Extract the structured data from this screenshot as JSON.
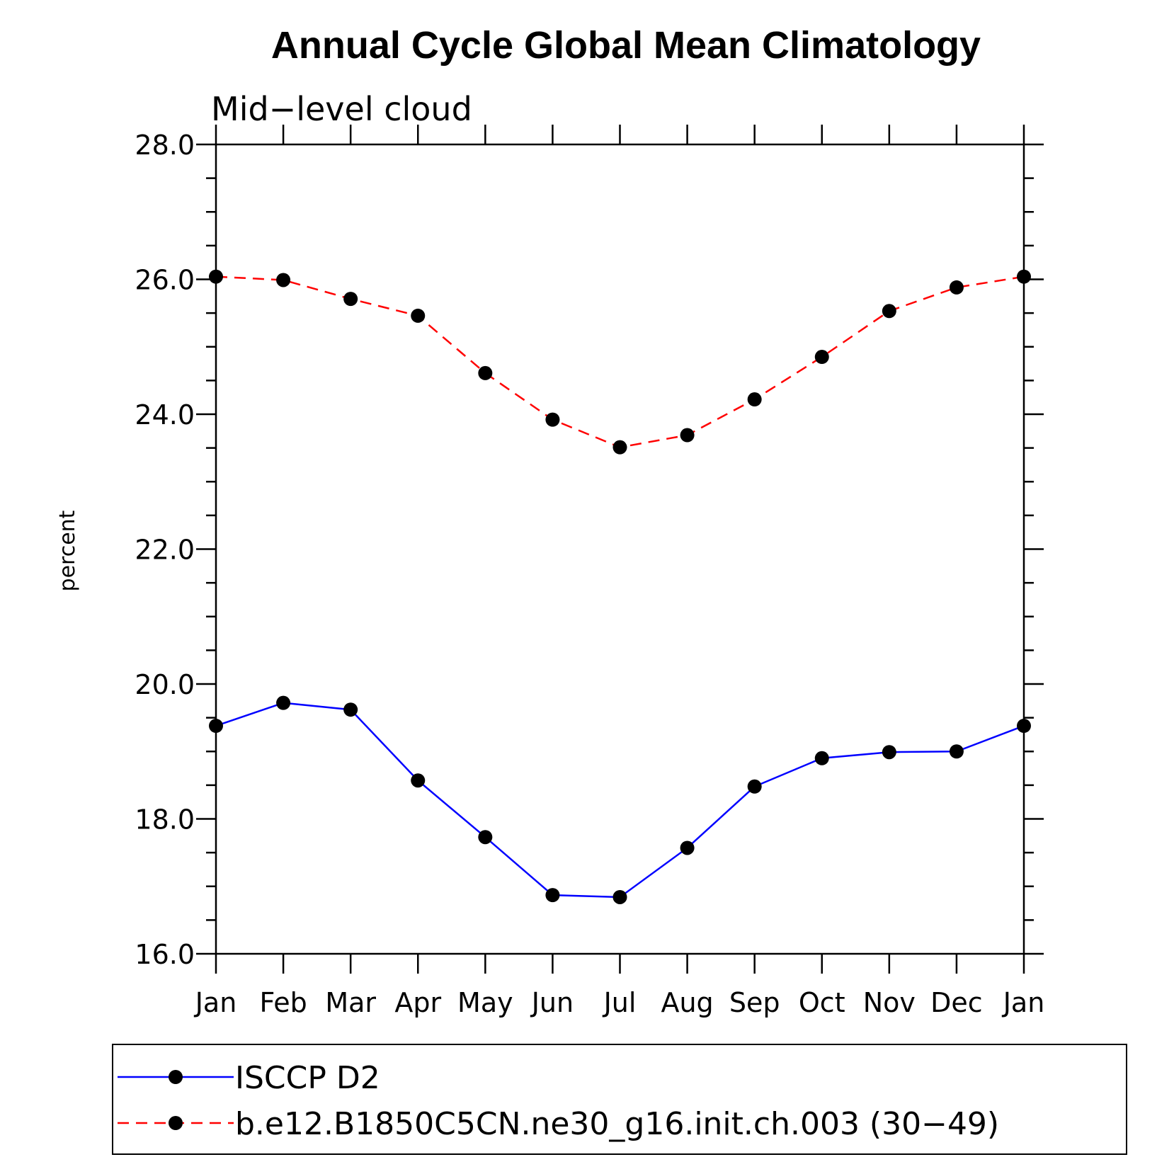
{
  "chart_data": {
    "type": "line",
    "title": "Annual Cycle Global Mean Climatology",
    "subtitle": "Mid−level cloud",
    "xlabel": "",
    "ylabel": "percent",
    "categories": [
      "Jan",
      "Feb",
      "Mar",
      "Apr",
      "May",
      "Jun",
      "Jul",
      "Aug",
      "Sep",
      "Oct",
      "Nov",
      "Dec",
      "Jan"
    ],
    "ylim": [
      16.0,
      28.0
    ],
    "yticks": [
      "16.0",
      "18.0",
      "20.0",
      "22.0",
      "24.0",
      "26.0",
      "28.0"
    ],
    "grid": false,
    "legend_position": "bottom",
    "series": [
      {
        "name": "ISCCP D2",
        "color": "#0000ff",
        "line_style": "solid",
        "marker": "filled-circle",
        "values": [
          19.38,
          19.72,
          19.62,
          18.57,
          17.73,
          16.87,
          16.84,
          17.57,
          18.48,
          18.9,
          18.99,
          19.0,
          19.38
        ]
      },
      {
        "name": "b.e12.B1850C5CN.ne30_g16.init.ch.003 (30−49)",
        "color": "#ff0000",
        "line_style": "dashed",
        "marker": "filled-circle",
        "values": [
          26.04,
          25.99,
          25.71,
          25.46,
          24.61,
          23.92,
          23.51,
          23.69,
          24.22,
          24.85,
          25.53,
          25.88,
          26.04
        ]
      }
    ]
  }
}
